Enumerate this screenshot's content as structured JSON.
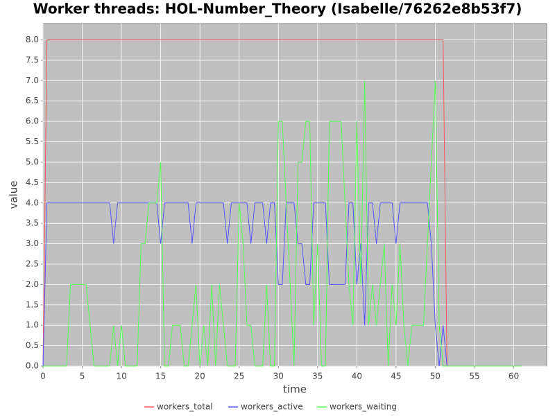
{
  "chart_data": {
    "type": "line",
    "title": "Worker threads: HOL-Number_Theory (Isabelle/76262e8b53f7)",
    "x_label": "time",
    "y_label": "value",
    "xlim": [
      0,
      64.2
    ],
    "ylim": [
      0,
      8.4
    ],
    "xticks": [
      0,
      5,
      10,
      15,
      20,
      25,
      30,
      35,
      40,
      45,
      50,
      55,
      60
    ],
    "yticks": [
      {
        "value": 0,
        "label": "0.0"
      },
      {
        "value": 0.5,
        "label": "0.5"
      },
      {
        "value": 1,
        "label": "1.0"
      },
      {
        "value": 1.5,
        "label": "1.5"
      },
      {
        "value": 2,
        "label": "2.0"
      },
      {
        "value": 2.5,
        "label": "2.5"
      },
      {
        "value": 3,
        "label": "3.0"
      },
      {
        "value": 3.5,
        "label": "3.5"
      },
      {
        "value": 4,
        "label": "4.0"
      },
      {
        "value": 4.5,
        "label": "4.5"
      },
      {
        "value": 5,
        "label": "5.0"
      },
      {
        "value": 5.5,
        "label": "5.5"
      },
      {
        "value": 6,
        "label": "6.0"
      },
      {
        "value": 6.5,
        "label": "6.5"
      },
      {
        "value": 7,
        "label": "7.0"
      },
      {
        "value": 7.5,
        "label": "7.5"
      },
      {
        "value": 8,
        "label": "8.0"
      }
    ],
    "grid": true,
    "legend": "bottom",
    "series": [
      {
        "name": "workers_total",
        "color": "#ff5555",
        "x": [
          0,
          0.5,
          51,
          51.5,
          61
        ],
        "values": [
          0,
          8,
          8,
          0,
          0
        ]
      },
      {
        "name": "workers_active",
        "color": "#5555ff",
        "x": [
          0,
          0.5,
          8.5,
          9,
          9.5,
          14.5,
          15,
          15.5,
          18.5,
          19,
          19.5,
          23,
          23.5,
          24,
          26,
          26.5,
          27,
          28,
          28.5,
          29,
          29.5,
          30,
          30.5,
          31,
          32,
          32.5,
          33,
          33.5,
          34,
          34.5,
          36,
          36.5,
          38.5,
          39,
          39.5,
          40,
          40.5,
          41,
          41.5,
          42,
          42.5,
          43,
          44.5,
          45,
          45.5,
          49,
          49.5,
          50,
          50.5,
          51,
          51.5,
          61
        ],
        "values": [
          0,
          4,
          4,
          3,
          4,
          4,
          3,
          4,
          4,
          3,
          4,
          4,
          3,
          4,
          4,
          3,
          4,
          4,
          3,
          4,
          4,
          2,
          2,
          4,
          4,
          3,
          3,
          2,
          2,
          4,
          4,
          2,
          2,
          4,
          4,
          2,
          3,
          1,
          4,
          4,
          3,
          4,
          4,
          3,
          4,
          4,
          3,
          1,
          0,
          1,
          0,
          0
        ]
      },
      {
        "name": "workers_waiting",
        "color": "#55ff55",
        "x": [
          0,
          3,
          3.5,
          5.5,
          6,
          6.5,
          8.5,
          9,
          9.5,
          10,
          10.5,
          12,
          12.5,
          13,
          13.5,
          14.5,
          15,
          15.5,
          16,
          16.5,
          17.5,
          18,
          18.5,
          19.5,
          20,
          20.5,
          21,
          21.5,
          22,
          22.5,
          23,
          23.5,
          24.5,
          25,
          25.5,
          26,
          26.5,
          27,
          28,
          28.5,
          29,
          29.5,
          30,
          30.5,
          31,
          31.5,
          32,
          32.5,
          33,
          33.5,
          34,
          34.5,
          35,
          35.5,
          36,
          36.5,
          38,
          38.5,
          39,
          39.5,
          40,
          40.5,
          41,
          41.5,
          42,
          42.5,
          43,
          43.5,
          44,
          44.5,
          45,
          45.5,
          46,
          46.5,
          47,
          48.5,
          49,
          50,
          50.5,
          51,
          61
        ],
        "values": [
          0,
          0,
          2,
          2,
          1,
          0,
          0,
          1,
          0,
          1,
          0,
          0,
          3,
          3,
          4,
          4,
          5,
          0,
          0,
          1,
          1,
          0,
          0,
          2,
          0,
          1,
          0,
          2,
          0,
          2,
          1,
          0,
          0,
          4,
          3,
          1,
          1,
          0,
          0,
          2,
          0,
          0,
          6,
          6,
          4,
          2,
          0,
          5,
          5,
          6,
          6,
          1,
          3,
          0,
          0,
          6,
          6,
          4,
          2,
          1,
          6,
          2,
          7,
          1,
          2,
          1,
          2,
          3,
          0,
          2,
          1,
          3,
          1,
          0,
          1,
          1,
          3,
          7,
          1,
          0,
          0
        ]
      }
    ]
  }
}
